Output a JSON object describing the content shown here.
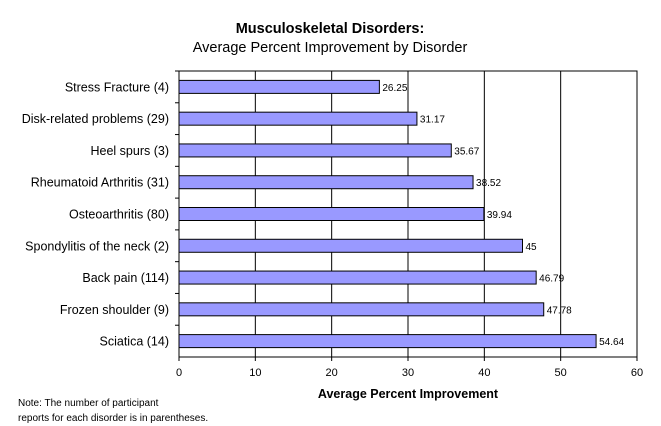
{
  "chart_data": {
    "type": "bar",
    "orientation": "horizontal",
    "title": "Musculoskeletal Disorders:",
    "subtitle": "Average Percent Improvement by Disorder",
    "xlabel": "Average Percent Improvement",
    "ylabel": "",
    "categories": [
      "Stress Fracture (4)",
      "Disk-related problems (29)",
      "Heel spurs (3)",
      "Rheumatoid Arthritis (31)",
      "Osteoarthritis (80)",
      "Spondylitis of the neck (2)",
      "Back pain (114)",
      "Frozen shoulder (9)",
      "Sciatica (14)"
    ],
    "values": [
      26.25,
      31.17,
      35.67,
      38.52,
      39.94,
      45,
      46.79,
      47.78,
      54.64
    ],
    "value_labels": [
      "26.25",
      "31.17",
      "35.67",
      "38.52",
      "39.94",
      "45",
      "46.79",
      "47.78",
      "54.64"
    ],
    "xlim": [
      0,
      60
    ],
    "xticks": [
      0,
      10,
      20,
      30,
      40,
      50,
      60
    ],
    "grid": "vertical",
    "legend": "none",
    "bar_color": "#9999ff"
  },
  "note": {
    "line1": "Note: The number of participant",
    "line2": "reports for each disorder is in parentheses."
  }
}
